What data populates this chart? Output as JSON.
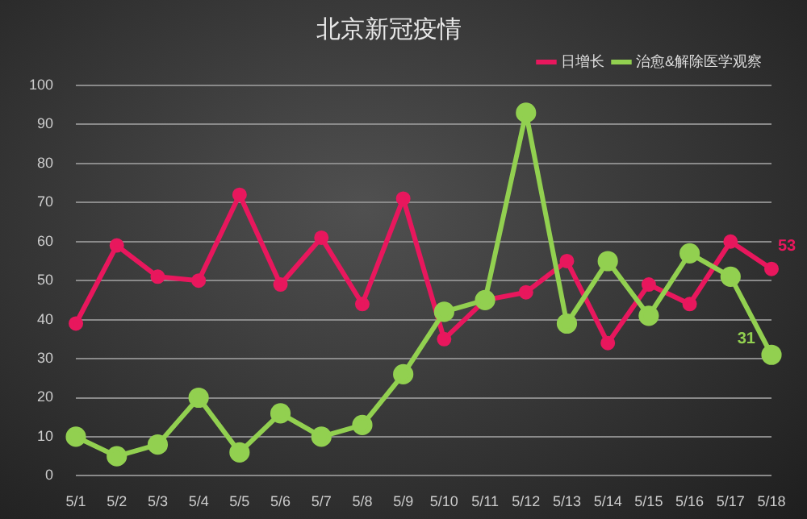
{
  "chart_data": {
    "type": "line",
    "title": "北京新冠疫情",
    "categories": [
      "5/1",
      "5/2",
      "5/3",
      "5/4",
      "5/5",
      "5/6",
      "5/7",
      "5/8",
      "5/9",
      "5/10",
      "5/11",
      "5/12",
      "5/13",
      "5/14",
      "5/15",
      "5/16",
      "5/17",
      "5/18"
    ],
    "series": [
      {
        "name": "日增长",
        "color": "#e8175d",
        "values": [
          39,
          59,
          51,
          50,
          72,
          49,
          61,
          44,
          71,
          35,
          45,
          47,
          55,
          34,
          49,
          44,
          60,
          53
        ],
        "value_labels": [
          null,
          null,
          null,
          null,
          null,
          null,
          null,
          null,
          null,
          null,
          null,
          null,
          null,
          null,
          null,
          null,
          null,
          "53"
        ]
      },
      {
        "name": "治愈&解除医学观察",
        "color": "#92d050",
        "values": [
          10,
          5,
          8,
          20,
          6,
          16,
          10,
          13,
          26,
          42,
          45,
          93,
          39,
          55,
          41,
          57,
          51,
          31
        ],
        "value_labels": [
          null,
          null,
          null,
          null,
          null,
          null,
          null,
          null,
          null,
          null,
          null,
          null,
          null,
          null,
          null,
          null,
          null,
          "31"
        ]
      }
    ],
    "ylim": [
      0,
      100
    ],
    "yticks": [
      0,
      10,
      20,
      30,
      40,
      50,
      60,
      70,
      80,
      90,
      100
    ],
    "grid": "y",
    "legend": "top right",
    "marker": "circle",
    "line_style": "solid"
  }
}
